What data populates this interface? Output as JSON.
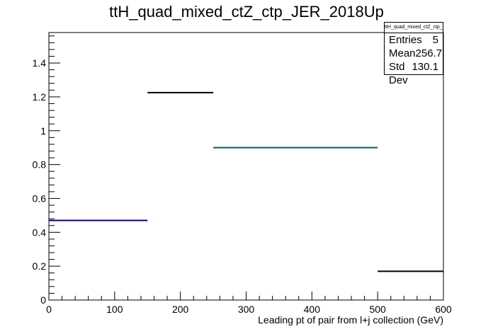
{
  "chart_data": {
    "type": "histogram",
    "title": "ttH_quad_mixed_ctZ_ctp_JER_2018Up",
    "xlabel": "Leading pt of pair from l+j collection (GeV)",
    "ylabel": "",
    "xlim": [
      0,
      600
    ],
    "ylim": [
      0,
      1.58
    ],
    "x_ticks": [
      0,
      100,
      200,
      300,
      400,
      500,
      600
    ],
    "y_ticks": [
      0,
      0.2,
      0.4,
      0.6,
      0.8,
      1,
      1.2,
      1.4
    ],
    "grid": false,
    "bins": [
      {
        "x0": 0,
        "x1": 150,
        "y": 0.47,
        "color": "#000080"
      },
      {
        "x0": 150,
        "x1": 250,
        "y": 1.225,
        "color": "#000000"
      },
      {
        "x0": 250,
        "x1": 500,
        "y": 0.9,
        "color": "#006060"
      },
      {
        "x0": 500,
        "x1": 600,
        "y": 0.17,
        "color": "#000000"
      }
    ]
  },
  "stats": {
    "title": "ttH_quad_mixed_ctZ_ctp_JER_2018Up",
    "rows": [
      {
        "label": "Entries",
        "value": "5"
      },
      {
        "label": "Mean",
        "value": "256.7"
      },
      {
        "label": "Std Dev",
        "value": "130.1"
      }
    ]
  }
}
